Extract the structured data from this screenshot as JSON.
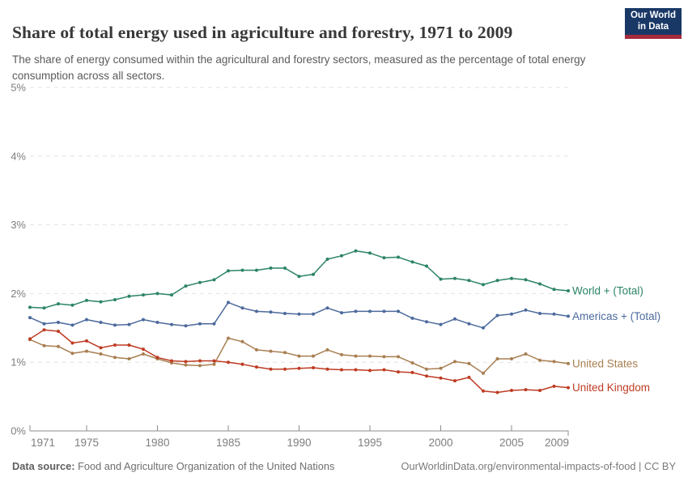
{
  "header": {
    "title": "Share of total energy used in agriculture and forestry, 1971 to 2009",
    "subtitle": "The share of energy consumed within the agricultural and forestry sectors, measured as the percentage of total energy consumption across all sectors.",
    "logo": {
      "line1": "Our World",
      "line2": "in Data",
      "bg_color": "#1a3866",
      "stripe_color": "#a52a3d"
    }
  },
  "chart_data": {
    "type": "line",
    "title": "Share of total energy used in agriculture and forestry, 1971 to 2009",
    "xlabel": "",
    "ylabel": "",
    "ylim": [
      0,
      5
    ],
    "yticks": [
      "0%",
      "1%",
      "2%",
      "3%",
      "4%",
      "5%"
    ],
    "xticks": [
      1971,
      1975,
      1980,
      1985,
      1990,
      1995,
      2000,
      2005,
      2009
    ],
    "grid": "horizontal-dashed",
    "legend_position": "right-of-line-ends",
    "x": [
      1971,
      1972,
      1973,
      1974,
      1975,
      1976,
      1977,
      1978,
      1979,
      1980,
      1981,
      1982,
      1983,
      1984,
      1985,
      1986,
      1987,
      1988,
      1989,
      1990,
      1991,
      1992,
      1993,
      1994,
      1995,
      1996,
      1997,
      1998,
      1999,
      2000,
      2001,
      2002,
      2003,
      2004,
      2005,
      2006,
      2007,
      2008,
      2009
    ],
    "series": [
      {
        "name": "World + (Total)",
        "color": "#2C8465",
        "values": [
          1.8,
          1.79,
          1.85,
          1.83,
          1.9,
          1.88,
          1.91,
          1.96,
          1.98,
          2.0,
          1.98,
          2.11,
          2.16,
          2.2,
          2.33,
          2.34,
          2.34,
          2.37,
          2.37,
          2.25,
          2.28,
          2.5,
          2.55,
          2.62,
          2.59,
          2.52,
          2.53,
          2.46,
          2.4,
          2.21,
          2.22,
          2.19,
          2.13,
          2.19,
          2.22,
          2.2,
          2.14,
          2.06,
          2.04
        ]
      },
      {
        "name": "Americas + (Total)",
        "color": "#4C6A9C",
        "values": [
          1.65,
          1.56,
          1.58,
          1.54,
          1.62,
          1.58,
          1.54,
          1.55,
          1.62,
          1.58,
          1.55,
          1.53,
          1.56,
          1.56,
          1.87,
          1.79,
          1.74,
          1.73,
          1.71,
          1.7,
          1.7,
          1.79,
          1.72,
          1.74,
          1.74,
          1.74,
          1.74,
          1.64,
          1.59,
          1.55,
          1.63,
          1.56,
          1.5,
          1.68,
          1.7,
          1.76,
          1.71,
          1.7,
          1.67
        ]
      },
      {
        "name": "United States",
        "color": "#A87F52",
        "values": [
          1.33,
          1.24,
          1.23,
          1.13,
          1.16,
          1.12,
          1.07,
          1.05,
          1.12,
          1.05,
          0.99,
          0.96,
          0.95,
          0.97,
          1.35,
          1.3,
          1.18,
          1.16,
          1.14,
          1.09,
          1.09,
          1.18,
          1.11,
          1.09,
          1.09,
          1.08,
          1.08,
          0.99,
          0.9,
          0.91,
          1.01,
          0.98,
          0.84,
          1.05,
          1.05,
          1.12,
          1.03,
          1.01,
          0.98
        ]
      },
      {
        "name": "United Kingdom",
        "color": "#BE3C23",
        "values": [
          1.34,
          1.47,
          1.45,
          1.28,
          1.31,
          1.21,
          1.25,
          1.25,
          1.19,
          1.07,
          1.02,
          1.01,
          1.02,
          1.02,
          1.0,
          0.97,
          0.93,
          0.9,
          0.9,
          0.91,
          0.92,
          0.9,
          0.89,
          0.89,
          0.88,
          0.89,
          0.86,
          0.85,
          0.8,
          0.77,
          0.73,
          0.78,
          0.58,
          0.56,
          0.59,
          0.6,
          0.59,
          0.65,
          0.63
        ]
      }
    ],
    "style": {
      "grid_color": "#e2e2e2",
      "axis_color": "#8c8c8c",
      "tick_label_color": "#7e7e7e"
    }
  },
  "footer": {
    "source_label": "Data source:",
    "source_text": " Food and Agriculture Organization of the United Nations",
    "right_text": "OurWorldinData.org/environmental-impacts-of-food | CC BY"
  }
}
